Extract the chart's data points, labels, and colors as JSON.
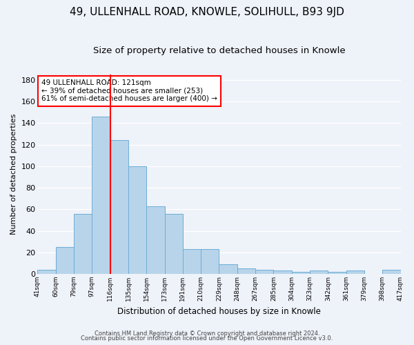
{
  "title": "49, ULLENHALL ROAD, KNOWLE, SOLIHULL, B93 9JD",
  "subtitle": "Size of property relative to detached houses in Knowle",
  "xlabel": "Distribution of detached houses by size in Knowle",
  "ylabel": "Number of detached properties",
  "bar_values": [
    4,
    25,
    56,
    146,
    124,
    100,
    63,
    56,
    23,
    23,
    9,
    5,
    4,
    3,
    2,
    3,
    2,
    3,
    0,
    4
  ],
  "tick_labels": [
    "41sqm",
    "60sqm",
    "79sqm",
    "97sqm",
    "116sqm",
    "135sqm",
    "154sqm",
    "173sqm",
    "191sqm",
    "210sqm",
    "229sqm",
    "248sqm",
    "267sqm",
    "285sqm",
    "304sqm",
    "323sqm",
    "342sqm",
    "361sqm",
    "379sqm",
    "398sqm",
    "417sqm"
  ],
  "bar_color": "#b8d4ea",
  "bar_edge_color": "#6aaed6",
  "ylim": [
    0,
    185
  ],
  "yticks": [
    0,
    20,
    40,
    60,
    80,
    100,
    120,
    140,
    160,
    180
  ],
  "red_line_x": 4.0,
  "annotation_line1": "49 ULLENHALL ROAD: 121sqm",
  "annotation_line2": "← 39% of detached houses are smaller (253)",
  "annotation_line3": "61% of semi-detached houses are larger (400) →",
  "footer_line1": "Contains HM Land Registry data © Crown copyright and database right 2024.",
  "footer_line2": "Contains public sector information licensed under the Open Government Licence v3.0.",
  "background_color": "#eef2f9",
  "plot_background": "#eef2f9",
  "grid_color": "#ffffff",
  "title_fontsize": 11,
  "subtitle_fontsize": 9.5,
  "title_fontweight": "normal"
}
